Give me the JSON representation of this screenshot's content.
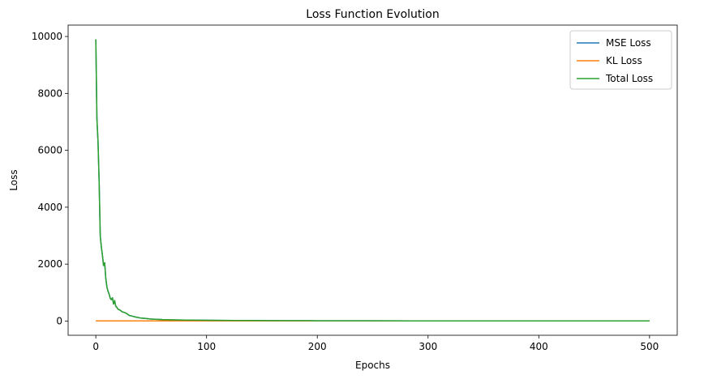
{
  "chart_data": {
    "type": "line",
    "title": "Loss Function Evolution",
    "xlabel": "Epochs",
    "ylabel": "Loss",
    "xlim": [
      -25,
      525
    ],
    "ylim": [
      -500,
      10400
    ],
    "xticks": [
      0,
      100,
      200,
      300,
      400,
      500
    ],
    "yticks": [
      0,
      2000,
      4000,
      6000,
      8000,
      10000
    ],
    "grid": false,
    "legend_position": "top-right",
    "series": [
      {
        "name": "MSE Loss",
        "color": "#1f77b4",
        "x": [
          0,
          1,
          2,
          3,
          4,
          5,
          6,
          7,
          8,
          9,
          10,
          11,
          12,
          13,
          14,
          15,
          16,
          17,
          18,
          19,
          20,
          22,
          24,
          26,
          28,
          30,
          33,
          36,
          40,
          45,
          50,
          60,
          70,
          80,
          100,
          125,
          150,
          175,
          200,
          250,
          300,
          350,
          400,
          450,
          500
        ],
        "y": [
          9900,
          7100,
          6300,
          4900,
          3000,
          2600,
          2300,
          1950,
          2050,
          1500,
          1200,
          1050,
          950,
          800,
          750,
          820,
          600,
          720,
          520,
          480,
          420,
          380,
          320,
          300,
          260,
          200,
          170,
          140,
          110,
          90,
          70,
          50,
          40,
          35,
          25,
          20,
          15,
          12,
          10,
          8,
          6,
          5,
          5,
          4,
          4
        ]
      },
      {
        "name": "KL Loss",
        "color": "#ff7f0e",
        "x": [
          0,
          500
        ],
        "y": [
          5,
          5
        ]
      },
      {
        "name": "Total Loss",
        "color": "#2ca02c",
        "x": [
          0,
          1,
          2,
          3,
          4,
          5,
          6,
          7,
          8,
          9,
          10,
          11,
          12,
          13,
          14,
          15,
          16,
          17,
          18,
          19,
          20,
          22,
          24,
          26,
          28,
          30,
          33,
          36,
          40,
          45,
          50,
          60,
          70,
          80,
          100,
          125,
          150,
          175,
          200,
          250,
          300,
          350,
          400,
          450,
          500
        ],
        "y": [
          9900,
          7100,
          6300,
          4900,
          3000,
          2600,
          2300,
          1950,
          2050,
          1500,
          1200,
          1050,
          950,
          800,
          750,
          820,
          600,
          720,
          520,
          480,
          420,
          380,
          320,
          300,
          260,
          200,
          170,
          140,
          110,
          90,
          70,
          50,
          40,
          35,
          25,
          20,
          15,
          12,
          10,
          8,
          6,
          5,
          5,
          4,
          4
        ]
      }
    ]
  }
}
